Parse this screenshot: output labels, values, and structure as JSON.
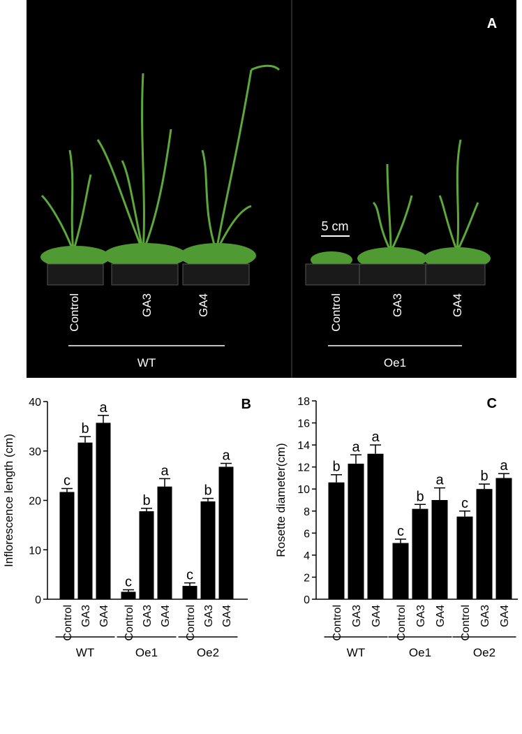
{
  "panel_a": {
    "label": "A",
    "scale_bar": "5 cm",
    "groups": [
      {
        "name": "WT",
        "treatments": [
          "Control",
          "GA3",
          "GA4"
        ]
      },
      {
        "name": "Oe1",
        "treatments": [
          "Control",
          "GA3",
          "GA4"
        ]
      }
    ]
  },
  "chart_data": [
    {
      "type": "bar",
      "panel_label": "B",
      "ylabel": "Inflorescence length (cm)",
      "categories": [
        "Control",
        "GA3",
        "GA4",
        "Control",
        "GA3",
        "GA4",
        "Control",
        "GA3",
        "GA4"
      ],
      "groups": [
        "WT",
        "Oe1",
        "Oe2"
      ],
      "values": [
        21.7,
        31.7,
        35.7,
        1.5,
        17.8,
        22.8,
        2.7,
        19.8,
        26.8
      ],
      "errors": [
        0.7,
        1.2,
        1.5,
        0.4,
        0.6,
        1.6,
        0.6,
        0.6,
        0.7
      ],
      "annotations": [
        "c",
        "b",
        "a",
        "c",
        "b",
        "a",
        "c",
        "b",
        "a"
      ],
      "color": "#000000",
      "ylim": [
        0,
        40
      ],
      "yticks": [
        0,
        10,
        20,
        30,
        40
      ]
    },
    {
      "type": "bar",
      "panel_label": "C",
      "ylabel": "Rosette diameter(cm)",
      "categories": [
        "Control",
        "GA3",
        "GA4",
        "Control",
        "GA3",
        "GA4",
        "Control",
        "GA3",
        "GA4"
      ],
      "groups": [
        "WT",
        "Oe1",
        "Oe2"
      ],
      "values": [
        10.6,
        12.3,
        13.2,
        5.1,
        8.2,
        9.0,
        7.5,
        10.0,
        11.0
      ],
      "errors": [
        0.7,
        0.8,
        0.8,
        0.35,
        0.4,
        1.1,
        0.5,
        0.45,
        0.4
      ],
      "annotations": [
        "b",
        "a",
        "a",
        "c",
        "b",
        "a",
        "c",
        "b",
        "a"
      ],
      "color": "#000000",
      "ylim": [
        0,
        18
      ],
      "yticks": [
        0,
        2,
        4,
        6,
        8,
        10,
        12,
        14,
        16,
        18
      ]
    }
  ]
}
